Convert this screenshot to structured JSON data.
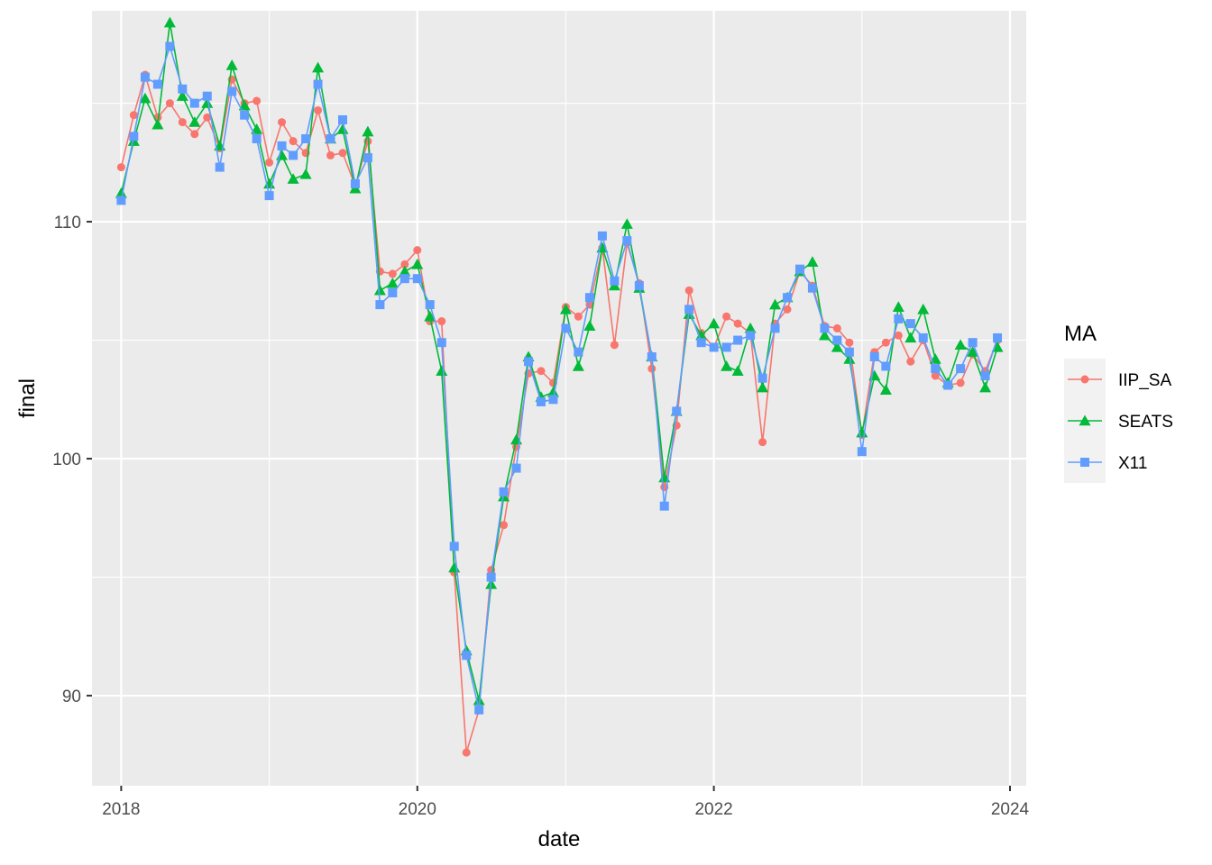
{
  "chart_data": {
    "type": "line",
    "title": "",
    "xlabel": "date",
    "ylabel": "final",
    "xlim": [
      "2017-10-21",
      "2024-02-10"
    ],
    "ylim": [
      86.2,
      118.9
    ],
    "x_ticks": [
      {
        "date": "2018-01-01",
        "label": "2018"
      },
      {
        "date": "2020-01-01",
        "label": "2020"
      },
      {
        "date": "2022-01-01",
        "label": "2022"
      },
      {
        "date": "2024-01-01",
        "label": "2024"
      }
    ],
    "x_minor_dates": [
      "2019-01-01",
      "2021-01-01",
      "2023-01-01"
    ],
    "y_ticks": [
      90,
      100,
      110
    ],
    "y_minor": [
      95,
      105,
      115
    ],
    "x_start": "2018-01",
    "x_step": "1 month",
    "legend": {
      "title": "MA",
      "placement": "right",
      "entries": [
        "IIP_SA",
        "SEATS",
        "X11"
      ]
    },
    "colors": {
      "panel": "#EBEBEB",
      "grid": "#FFFFFF"
    },
    "series": [
      {
        "name": "IIP_SA",
        "color": "#F8766D",
        "marker": "circle",
        "values": [
          112.3,
          114.5,
          116.2,
          114.4,
          115.0,
          114.2,
          113.7,
          114.4,
          113.1,
          116.0,
          115.0,
          115.1,
          112.5,
          114.2,
          113.4,
          112.9,
          114.7,
          112.8,
          112.9,
          111.5,
          113.4,
          107.9,
          107.8,
          108.2,
          108.8,
          105.8,
          105.8,
          95.2,
          87.6,
          89.4,
          95.3,
          97.2,
          100.5,
          103.6,
          103.7,
          103.2,
          106.4,
          106.0,
          106.5,
          108.9,
          104.8,
          109.1,
          107.4,
          103.8,
          98.8,
          101.4,
          107.1,
          105.3,
          104.7,
          106.0,
          105.7,
          105.3,
          100.7,
          105.7,
          106.3,
          107.9,
          107.3,
          105.6,
          105.5,
          104.9,
          101.0,
          104.5,
          104.9,
          105.2,
          104.1,
          105.0,
          103.5,
          103.1,
          103.2,
          104.4,
          103.7,
          105.0
        ]
      },
      {
        "name": "SEATS",
        "color": "#00BA38",
        "marker": "triangle",
        "values": [
          111.2,
          113.4,
          115.2,
          114.1,
          118.4,
          115.3,
          114.2,
          115.0,
          113.2,
          116.6,
          114.9,
          113.9,
          111.6,
          112.8,
          111.8,
          112.0,
          116.5,
          113.5,
          113.9,
          111.4,
          113.8,
          107.1,
          107.4,
          107.9,
          108.2,
          106.0,
          103.7,
          95.4,
          91.9,
          89.8,
          94.7,
          98.4,
          100.8,
          104.3,
          102.6,
          102.8,
          106.3,
          103.9,
          105.6,
          108.9,
          107.3,
          109.9,
          107.2,
          104.3,
          99.2,
          102.0,
          106.1,
          105.2,
          105.7,
          103.9,
          103.7,
          105.5,
          103.0,
          106.5,
          106.8,
          107.9,
          108.3,
          105.2,
          104.7,
          104.2,
          101.1,
          103.5,
          102.9,
          106.4,
          105.1,
          106.3,
          104.2,
          103.2,
          104.8,
          104.5,
          103.0,
          104.7
        ]
      },
      {
        "name": "X11",
        "color": "#619CFF",
        "marker": "square",
        "values": [
          110.9,
          113.6,
          116.1,
          115.8,
          117.4,
          115.6,
          115.0,
          115.3,
          112.3,
          115.5,
          114.5,
          113.5,
          111.1,
          113.2,
          112.8,
          113.5,
          115.8,
          113.5,
          114.3,
          111.6,
          112.7,
          106.5,
          107.0,
          107.6,
          107.6,
          106.5,
          104.9,
          96.3,
          91.7,
          89.4,
          95.0,
          98.6,
          99.6,
          104.1,
          102.4,
          102.5,
          105.5,
          104.5,
          106.8,
          109.4,
          107.5,
          109.2,
          107.3,
          104.3,
          98.0,
          102.0,
          106.3,
          104.9,
          104.7,
          104.7,
          105.0,
          105.2,
          103.4,
          105.5,
          106.8,
          108.0,
          107.2,
          105.5,
          105.0,
          104.5,
          100.3,
          104.3,
          103.9,
          105.9,
          105.7,
          105.1,
          103.8,
          103.1,
          103.8,
          104.9,
          103.5,
          105.1
        ]
      }
    ]
  }
}
